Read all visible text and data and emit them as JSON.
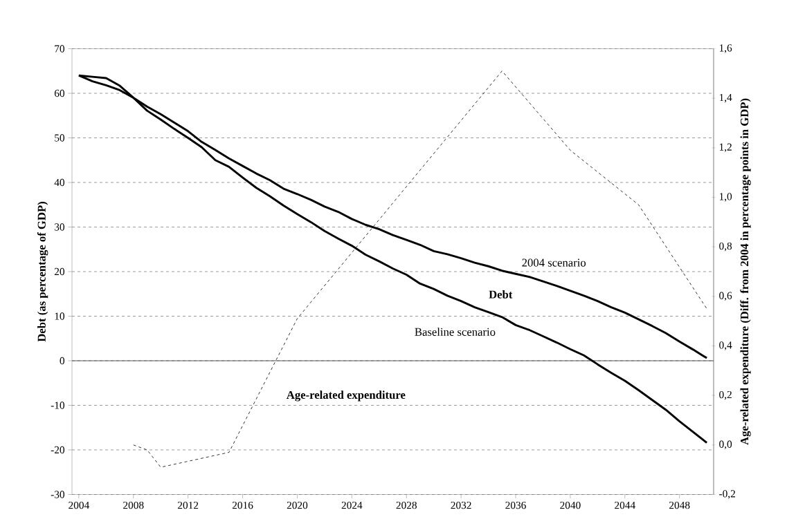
{
  "chart_data": {
    "type": "line",
    "ylabel": "Debt (as percentage of GDP)",
    "y2label": "Age-related expenditure (Diff. from 2004 in percentage points in GDP)",
    "annotations": [
      "Debt"
    ],
    "x": [
      2004,
      2005,
      2006,
      2007,
      2008,
      2009,
      2010,
      2011,
      2012,
      2013,
      2014,
      2015,
      2016,
      2017,
      2018,
      2019,
      2020,
      2021,
      2022,
      2023,
      2024,
      2025,
      2026,
      2027,
      2028,
      2029,
      2030,
      2031,
      2032,
      2033,
      2034,
      2035,
      2036,
      2037,
      2038,
      2039,
      2040,
      2041,
      2042,
      2043,
      2044,
      2045,
      2046,
      2047,
      2048,
      2049,
      2050
    ],
    "series": [
      {
        "name": "2004 scenario",
        "color": "#000000",
        "line_style": "solid",
        "values": [
          64.0,
          62.7,
          61.8,
          60.7,
          59.0,
          57.0,
          55.3,
          53.4,
          51.5,
          49.1,
          47.3,
          45.4,
          43.7,
          42.0,
          40.5,
          38.6,
          37.4,
          36.1,
          34.6,
          33.4,
          31.8,
          30.5,
          29.5,
          28.2,
          27.1,
          26.0,
          24.6,
          23.9,
          23.0,
          22.0,
          21.2,
          20.2,
          19.5,
          18.8,
          17.8,
          16.8,
          15.7,
          14.6,
          13.4,
          12.0,
          10.8,
          9.3,
          7.8,
          6.2,
          4.3,
          2.5,
          0.6
        ]
      },
      {
        "name": "Baseline scenario",
        "color": "#000000",
        "line_style": "solid",
        "values": [
          64.0,
          63.7,
          63.4,
          61.7,
          59.0,
          56.1,
          54.1,
          52.0,
          50.0,
          47.9,
          45.0,
          43.5,
          41.1,
          38.8,
          36.9,
          34.8,
          32.9,
          31.1,
          29.1,
          27.4,
          25.8,
          23.8,
          22.3,
          20.7,
          19.3,
          17.3,
          16.1,
          14.6,
          13.4,
          12.0,
          10.9,
          9.8,
          8.0,
          6.9,
          5.5,
          4.1,
          2.6,
          1.2,
          -0.8,
          -2.7,
          -4.5,
          -6.6,
          -8.8,
          -11.0,
          -13.6,
          -16.0,
          -18.4
        ]
      },
      {
        "name": "Age-related expenditure",
        "color": "#000000",
        "line_style": "dashed",
        "axis": "y2",
        "x": [
          2008,
          2009,
          2010,
          2015,
          2020,
          2035,
          2040,
          2045,
          2050
        ],
        "values": [
          0.0,
          -0.02,
          -0.09,
          -0.03,
          0.51,
          1.51,
          1.19,
          0.97,
          0.55
        ]
      }
    ],
    "xlim": [
      2003.5,
      2050.5
    ],
    "xticks": [
      2004,
      2008,
      2012,
      2016,
      2020,
      2024,
      2028,
      2032,
      2036,
      2040,
      2044,
      2048
    ],
    "ylim": [
      -30,
      70
    ],
    "yticks": [
      -30,
      -20,
      -10,
      0,
      10,
      20,
      30,
      40,
      50,
      60,
      70
    ],
    "y2lim": [
      -0.2,
      1.6
    ],
    "y2ticks": [
      {
        "value": -0.2,
        "label": "-0,2"
      },
      {
        "value": 0.0,
        "label": "0,0"
      },
      {
        "value": 0.2,
        "label": "0,2"
      },
      {
        "value": 0.4,
        "label": "0,4"
      },
      {
        "value": 0.6,
        "label": "0,6"
      },
      {
        "value": 0.8,
        "label": "0,8"
      },
      {
        "value": 1.0,
        "label": "1,0"
      },
      {
        "value": 1.2,
        "label": "1,2"
      },
      {
        "value": 1.4,
        "label": "1,4"
      },
      {
        "value": 1.6,
        "label": "1,6"
      }
    ],
    "ref_lines": [
      {
        "axis": "y",
        "value": 0,
        "color": "#555555",
        "line_style": "solid"
      }
    ],
    "grid": "y",
    "marker": "none"
  }
}
